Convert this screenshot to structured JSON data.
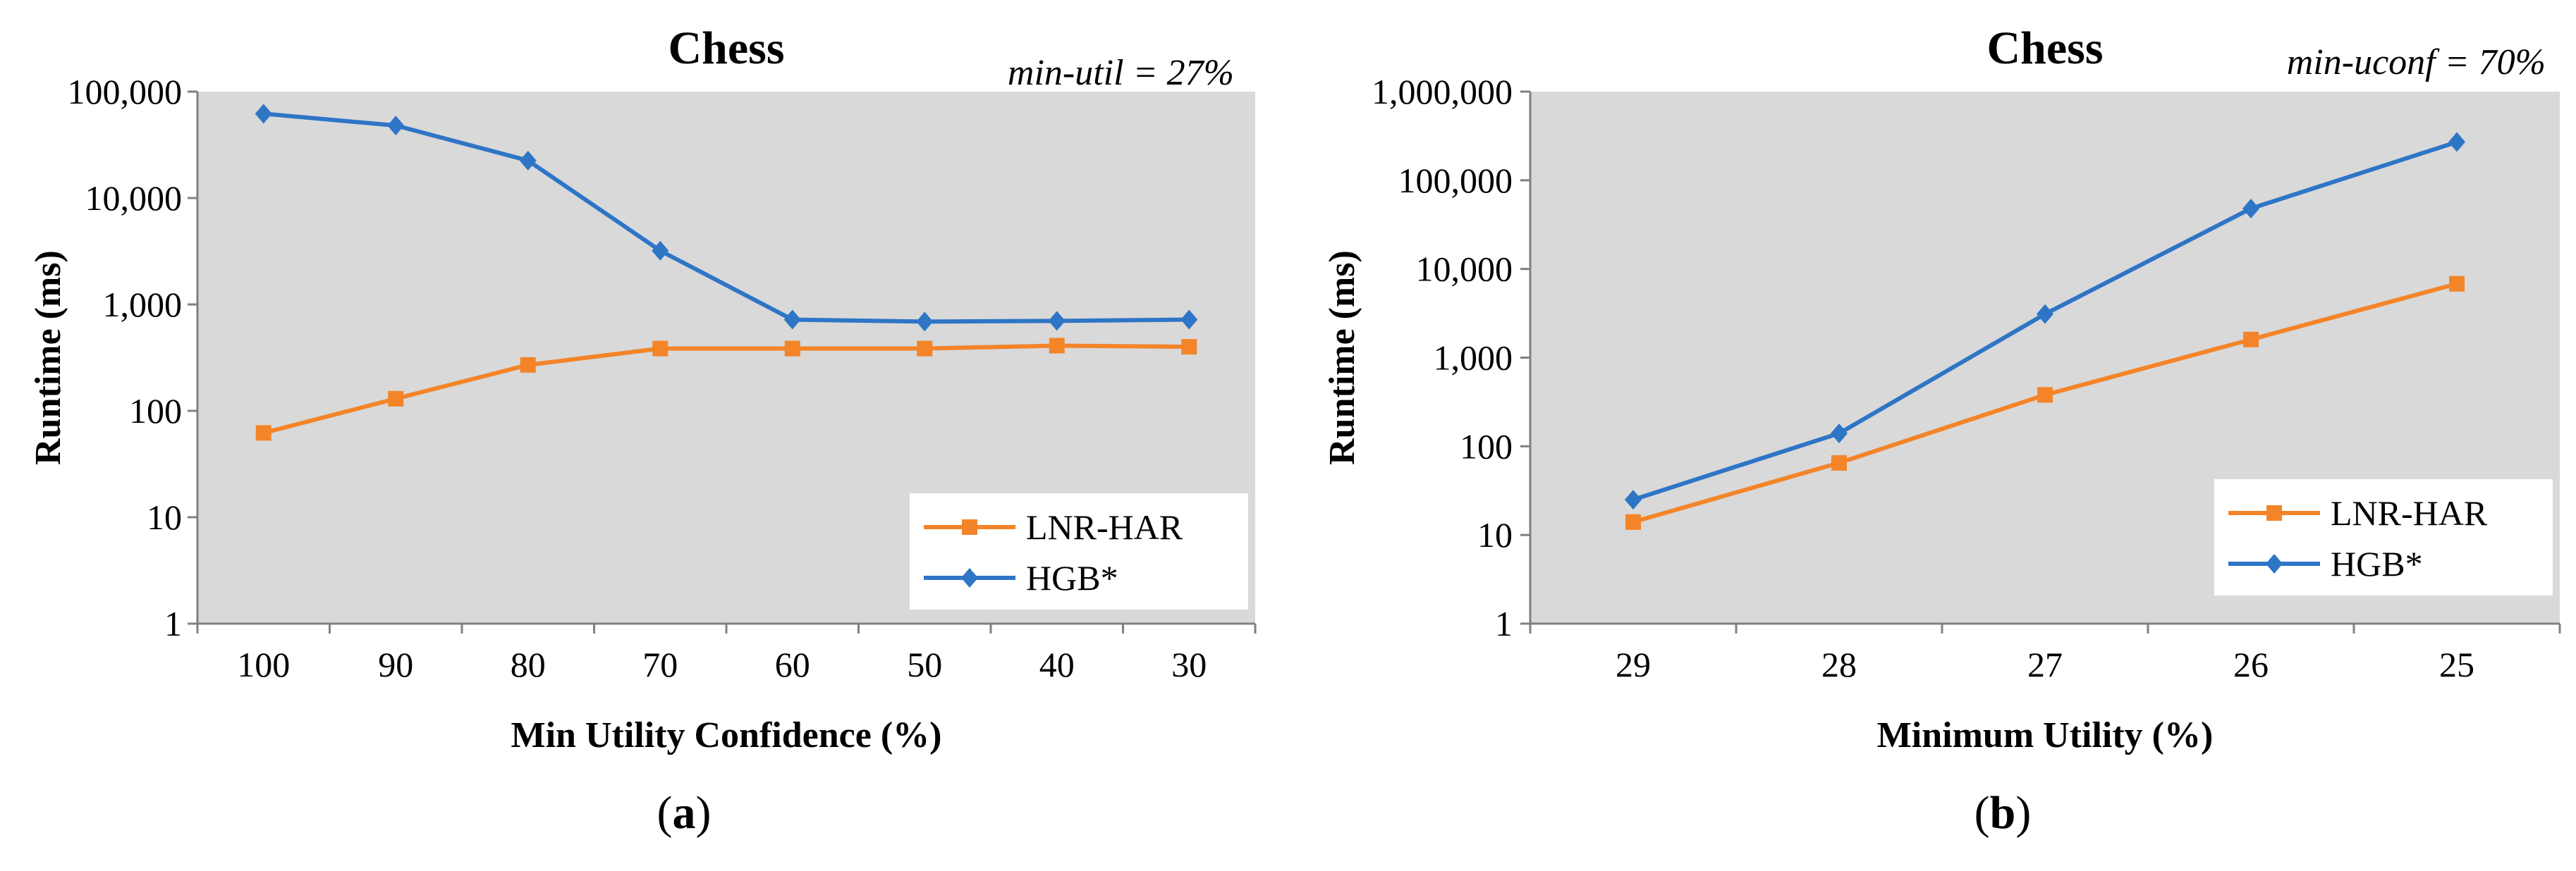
{
  "colors": {
    "plot_bg": "#d9d9d9",
    "lnr": "#f48428",
    "hgb": "#2e75c6",
    "axis": "#808080"
  },
  "chart_data": [
    {
      "id": "a",
      "panel_label": "a",
      "type": "line",
      "title": "Chess",
      "annotation": "min-util = 27%",
      "xlabel": "Min Utility Confidence (%)",
      "ylabel": "Runtime (ms)",
      "yscale": "log",
      "ylim": [
        1,
        100000
      ],
      "yticks": [
        1,
        10,
        100,
        1000,
        10000,
        100000
      ],
      "ytick_labels": [
        "1",
        "10",
        "100",
        "1,000",
        "10,000",
        "100,000"
      ],
      "categories": [
        "100",
        "90",
        "80",
        "70",
        "60",
        "50",
        "40",
        "30"
      ],
      "legend_position": "bottom-right",
      "series": [
        {
          "name": "LNR-HAR",
          "color": "#f48428",
          "marker": "square",
          "values": [
            62,
            130,
            270,
            385,
            385,
            385,
            410,
            400
          ]
        },
        {
          "name": "HGB*",
          "color": "#2e75c6",
          "marker": "diamond",
          "values": [
            62000,
            48000,
            22500,
            3200,
            720,
            690,
            700,
            720
          ]
        }
      ]
    },
    {
      "id": "b",
      "panel_label": "b",
      "type": "line",
      "title": "Chess",
      "annotation": "min-uconf = 70%",
      "xlabel": "Minimum Utility (%)",
      "ylabel": "Runtime (ms)",
      "yscale": "log",
      "ylim": [
        1,
        1000000
      ],
      "yticks": [
        1,
        10,
        100,
        1000,
        10000,
        100000,
        1000000
      ],
      "ytick_labels": [
        "1",
        "10",
        "100",
        "1,000",
        "10,000",
        "100,000",
        "1,000,000"
      ],
      "categories": [
        "29",
        "28",
        "27",
        "26",
        "25"
      ],
      "legend_position": "bottom-right",
      "series": [
        {
          "name": "LNR-HAR",
          "color": "#f48428",
          "marker": "square",
          "values": [
            14,
            65,
            380,
            1600,
            6800
          ]
        },
        {
          "name": "HGB*",
          "color": "#2e75c6",
          "marker": "diamond",
          "values": [
            25,
            140,
            3100,
            48000,
            270000
          ]
        }
      ]
    }
  ]
}
